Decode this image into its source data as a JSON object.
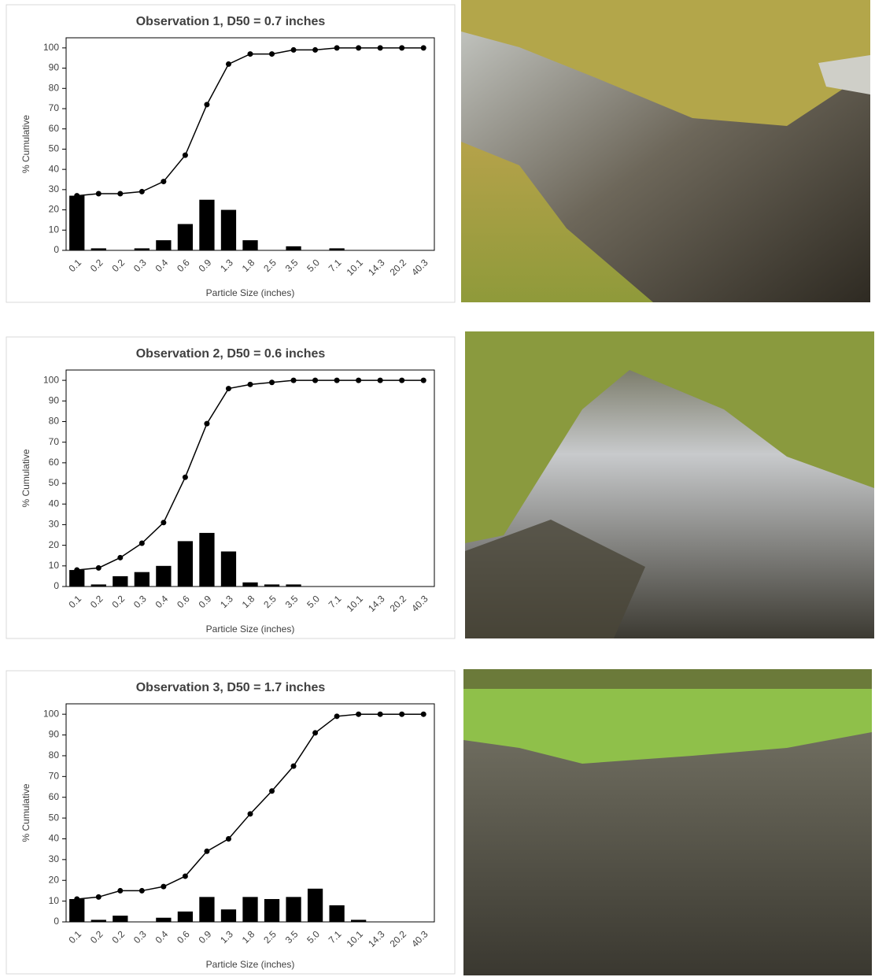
{
  "chart_data": [
    {
      "type": "combo",
      "title": "Observation 1, D50 = 0.7 inches",
      "y_label": "% Cumulative",
      "x_label": "Particle Size (inches)",
      "categories": [
        "0.1",
        "0.2",
        "0.2",
        "0.3",
        "0.4",
        "0.6",
        "0.9",
        "1.3",
        "1.8",
        "2.5",
        "3.5",
        "5.0",
        "7.1",
        "10.1",
        "14.3",
        "20.2",
        "40.3"
      ],
      "series": [
        {
          "type": "bar",
          "color": "#000000",
          "values": [
            27,
            1,
            0,
            1,
            5,
            13,
            25,
            20,
            5,
            0,
            2,
            0,
            1,
            0,
            0,
            0,
            0
          ]
        },
        {
          "type": "line",
          "color": "#000000",
          "values": [
            27,
            28,
            28,
            29,
            34,
            47,
            72,
            92,
            97,
            97,
            99,
            99,
            100,
            100,
            100,
            100,
            100
          ]
        }
      ],
      "ylim": [
        0,
        105
      ],
      "yticks": [
        0,
        10,
        20,
        30,
        40,
        50,
        60,
        70,
        80,
        90,
        100
      ]
    },
    {
      "type": "combo",
      "title": "Observation 2, D50 = 0.6 inches",
      "y_label": "% Cumulative",
      "x_label": "Particle Size (inches)",
      "categories": [
        "0.1",
        "0.2",
        "0.2",
        "0.3",
        "0.4",
        "0.6",
        "0.9",
        "1.3",
        "1.8",
        "2.5",
        "3.5",
        "5.0",
        "7.1",
        "10.1",
        "14.3",
        "20.2",
        "40.3"
      ],
      "series": [
        {
          "type": "bar",
          "color": "#000000",
          "values": [
            8,
            1,
            5,
            7,
            10,
            22,
            26,
            17,
            2,
            1,
            1,
            0,
            0,
            0,
            0,
            0,
            0
          ]
        },
        {
          "type": "line",
          "color": "#000000",
          "values": [
            8,
            9,
            14,
            21,
            31,
            53,
            79,
            96,
            98,
            99,
            100,
            100,
            100,
            100,
            100,
            100,
            100
          ]
        }
      ],
      "ylim": [
        0,
        105
      ],
      "yticks": [
        0,
        10,
        20,
        30,
        40,
        50,
        60,
        70,
        80,
        90,
        100
      ]
    },
    {
      "type": "combo",
      "title": "Observation 3, D50 = 1.7 inches",
      "y_label": "% Cumulative",
      "x_label": "Particle Size (inches)",
      "categories": [
        "0.1",
        "0.2",
        "0.2",
        "0.3",
        "0.4",
        "0.6",
        "0.9",
        "1.3",
        "1.8",
        "2.5",
        "3.5",
        "5.0",
        "7.1",
        "10.1",
        "14.3",
        "20.2",
        "40.3"
      ],
      "series": [
        {
          "type": "bar",
          "color": "#000000",
          "values": [
            11,
            1,
            3,
            0,
            2,
            5,
            12,
            6,
            12,
            11,
            12,
            16,
            8,
            1,
            0,
            0,
            0
          ]
        },
        {
          "type": "line",
          "color": "#000000",
          "values": [
            11,
            12,
            15,
            15,
            17,
            22,
            34,
            40,
            52,
            63,
            75,
            91,
            99,
            100,
            100,
            100,
            100
          ]
        }
      ],
      "ylim": [
        0,
        105
      ],
      "yticks": [
        0,
        10,
        20,
        30,
        40,
        50,
        60,
        70,
        80,
        90,
        100
      ]
    }
  ]
}
